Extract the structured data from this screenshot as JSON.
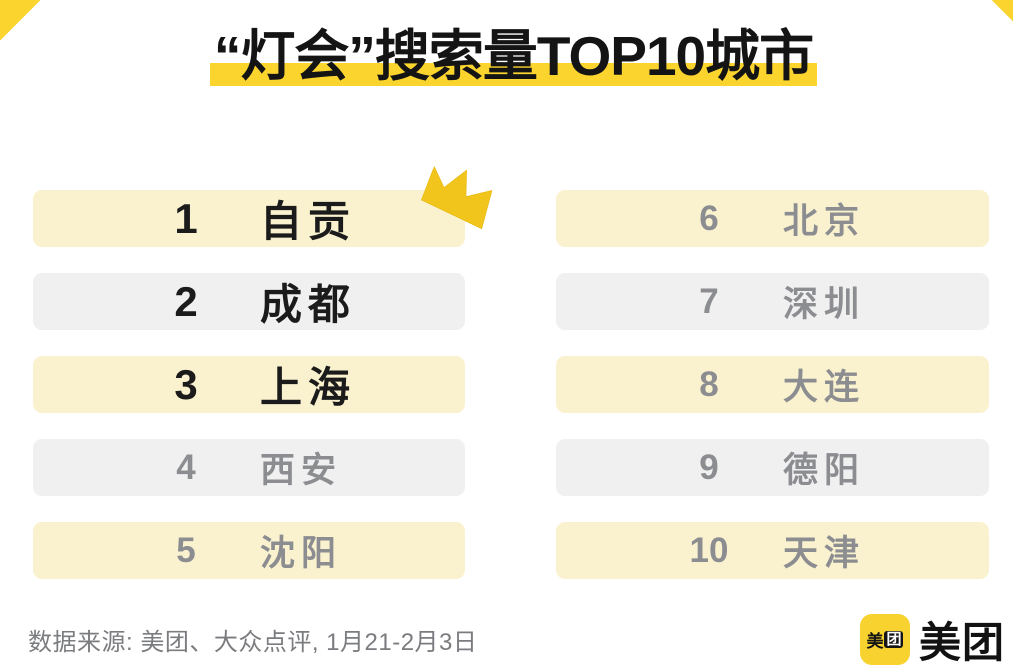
{
  "title": {
    "text": "“灯会”搜索量TOP10城市"
  },
  "ranking": {
    "left": [
      {
        "rank": "1",
        "city": "自贡",
        "emphasis": true
      },
      {
        "rank": "2",
        "city": "成都",
        "emphasis": true
      },
      {
        "rank": "3",
        "city": "上海",
        "emphasis": true
      },
      {
        "rank": "4",
        "city": "西安",
        "emphasis": false
      },
      {
        "rank": "5",
        "city": "沈阳",
        "emphasis": false
      }
    ],
    "right": [
      {
        "rank": "6",
        "city": "北京",
        "emphasis": false
      },
      {
        "rank": "7",
        "city": "深圳",
        "emphasis": false
      },
      {
        "rank": "8",
        "city": "大连",
        "emphasis": false
      },
      {
        "rank": "9",
        "city": "德阳",
        "emphasis": false
      },
      {
        "rank": "10",
        "city": "天津",
        "emphasis": false
      }
    ]
  },
  "footer": {
    "source": "数据来源: 美团、大众点评, 1月21-2月3日"
  },
  "logo": {
    "icon_mei": "美",
    "icon_tuan": "团",
    "wordmark": "美团"
  },
  "icons": {
    "crown": "crown-icon"
  },
  "colors": {
    "accent_yellow": "#FBD42E",
    "row_cream": "#FAF2CF",
    "row_gray": "#F1F0F1",
    "text_dark": "#1B1B1B",
    "text_gray": "#8C8D90",
    "logo_yellow": "#F8D22E",
    "crown_gold": "#F2C51D"
  },
  "chart_data": {
    "type": "table",
    "title": "“灯会”搜索量TOP10城市",
    "rows": [
      {
        "rank": 1,
        "city": "自贡"
      },
      {
        "rank": 2,
        "city": "成都"
      },
      {
        "rank": 3,
        "city": "上海"
      },
      {
        "rank": 4,
        "city": "西安"
      },
      {
        "rank": 5,
        "city": "沈阳"
      },
      {
        "rank": 6,
        "city": "北京"
      },
      {
        "rank": 7,
        "city": "深圳"
      },
      {
        "rank": 8,
        "city": "大连"
      },
      {
        "rank": 9,
        "city": "德阳"
      },
      {
        "rank": 10,
        "city": "天津"
      }
    ],
    "highlighted_ranks": [
      1,
      2,
      3
    ],
    "crowned_rank": 1,
    "source": "数据来源: 美团、大众点评, 1月21-2月3日",
    "legend_position": "none",
    "grid": false
  }
}
